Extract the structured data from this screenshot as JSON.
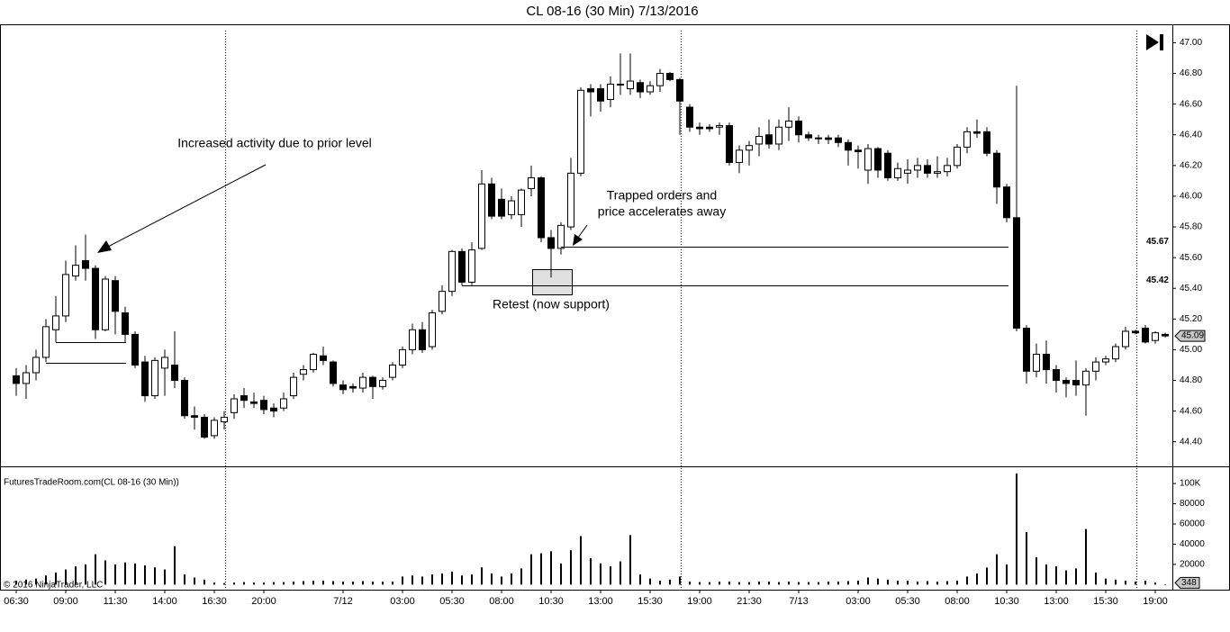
{
  "chart_data": [
    {
      "type": "candlestick",
      "title": "CL 08-16 (30 Min)  7/13/2016",
      "categories": [
        "06:30",
        null,
        null,
        null,
        null,
        "09:00",
        null,
        null,
        null,
        null,
        "11:30",
        null,
        null,
        null,
        null,
        "14:00",
        null,
        null,
        null,
        null,
        "16:30",
        null,
        null,
        null,
        null,
        "20:00",
        null,
        null,
        null,
        null,
        null,
        null,
        null,
        "7/12",
        null,
        null,
        null,
        null,
        null,
        "03:00",
        null,
        null,
        null,
        null,
        "05:30",
        null,
        null,
        null,
        null,
        "08:00",
        null,
        null,
        null,
        null,
        "10:30",
        null,
        null,
        null,
        null,
        "13:00",
        null,
        null,
        null,
        null,
        "15:30",
        null,
        null,
        null,
        null,
        "19:00",
        null,
        null,
        null,
        null,
        "21:30",
        null,
        null,
        null,
        null,
        "7/13",
        null,
        null,
        null,
        null,
        null,
        "03:00",
        null,
        null,
        null,
        null,
        "05:30",
        null,
        null,
        null,
        null,
        "08:00",
        null,
        null,
        null,
        null,
        "10:30",
        null,
        null,
        null,
        null,
        "13:00",
        null,
        null,
        null,
        null,
        "15:30",
        null,
        null,
        null,
        null,
        "19:00",
        null
      ],
      "open": [
        44.83,
        44.78,
        44.85,
        44.95,
        45.13,
        45.22,
        45.48,
        45.58,
        45.53,
        45.13,
        45.45,
        45.24,
        45.1,
        44.92,
        44.7,
        44.88,
        44.9,
        44.8,
        44.57,
        44.56,
        44.44,
        44.53,
        44.59,
        44.7,
        44.66,
        44.67,
        44.62,
        44.62,
        44.7,
        44.84,
        44.87,
        44.96,
        44.92,
        44.77,
        44.76,
        44.75,
        44.82,
        44.76,
        44.82,
        44.9,
        45.0,
        45.13,
        45.02,
        45.25,
        45.38,
        45.64,
        45.44,
        45.66,
        46.08,
        45.98,
        45.88,
        45.88,
        46.05,
        46.12,
        45.73,
        45.66,
        45.8,
        46.15,
        46.7,
        46.7,
        46.63,
        46.73,
        46.7,
        46.74,
        46.68,
        46.72,
        46.8,
        46.76,
        46.58,
        46.45,
        46.45,
        46.45,
        46.46,
        46.22,
        46.3,
        46.34,
        46.4,
        46.34,
        46.45,
        46.49,
        46.4,
        46.38,
        46.38,
        46.38,
        46.35,
        46.3,
        46.17,
        46.31,
        46.28,
        46.12,
        46.15,
        46.17,
        46.2,
        46.15,
        46.16,
        46.2,
        46.32,
        46.42,
        46.42,
        46.28,
        46.06,
        45.86,
        45.14,
        44.86,
        44.97,
        44.87,
        44.8,
        44.8,
        44.77,
        44.86,
        44.92,
        44.94,
        45.02,
        45.12,
        45.14,
        45.06,
        45.1
      ],
      "high": [
        44.88,
        44.9,
        45.0,
        45.2,
        45.35,
        45.58,
        45.68,
        45.75,
        45.55,
        45.48,
        45.48,
        45.28,
        45.12,
        44.96,
        44.95,
        45.0,
        45.12,
        44.82,
        44.63,
        44.58,
        44.56,
        44.6,
        44.71,
        44.75,
        44.72,
        44.7,
        44.65,
        44.72,
        44.85,
        44.9,
        44.98,
        45.02,
        44.93,
        44.8,
        44.78,
        44.85,
        44.83,
        44.82,
        44.92,
        45.02,
        45.17,
        45.18,
        45.26,
        45.42,
        45.65,
        45.66,
        45.7,
        46.17,
        46.12,
        46.05,
        46.0,
        46.05,
        46.2,
        46.13,
        45.78,
        45.83,
        46.25,
        46.71,
        46.73,
        46.73,
        46.78,
        46.93,
        46.93,
        46.76,
        46.75,
        46.83,
        46.81,
        46.77,
        46.6,
        46.48,
        46.47,
        46.48,
        46.48,
        46.33,
        46.36,
        46.45,
        46.5,
        46.5,
        46.58,
        46.52,
        46.42,
        46.4,
        46.4,
        46.4,
        46.37,
        46.33,
        46.34,
        46.32,
        46.3,
        46.22,
        46.24,
        46.25,
        46.24,
        46.26,
        46.25,
        46.34,
        46.45,
        46.5,
        46.45,
        46.3,
        46.08,
        46.72,
        45.16,
        45.04,
        45.06,
        44.9,
        44.82,
        44.93,
        44.88,
        44.95,
        44.96,
        45.04,
        45.15,
        45.13,
        45.16,
        45.12,
        45.11
      ],
      "low": [
        44.7,
        44.68,
        44.8,
        44.92,
        45.05,
        45.18,
        45.45,
        45.45,
        45.07,
        45.12,
        45.1,
        45.05,
        44.88,
        44.66,
        44.68,
        44.7,
        44.75,
        44.55,
        44.48,
        44.42,
        44.42,
        44.48,
        44.55,
        44.62,
        44.62,
        44.58,
        44.56,
        44.6,
        44.68,
        44.8,
        44.85,
        44.9,
        44.76,
        44.71,
        44.72,
        44.72,
        44.68,
        44.74,
        44.8,
        44.88,
        44.97,
        44.98,
        45.0,
        45.23,
        45.35,
        45.42,
        45.42,
        45.65,
        45.85,
        45.85,
        45.85,
        45.8,
        46.0,
        45.7,
        45.47,
        45.62,
        45.78,
        46.13,
        46.52,
        46.55,
        46.58,
        46.66,
        46.66,
        46.64,
        46.66,
        46.68,
        46.75,
        46.4,
        46.42,
        46.4,
        46.42,
        46.4,
        46.2,
        46.15,
        46.2,
        46.26,
        46.31,
        46.3,
        46.36,
        46.35,
        46.36,
        46.34,
        46.34,
        46.32,
        46.2,
        46.18,
        46.08,
        46.12,
        46.1,
        46.1,
        46.08,
        46.12,
        46.12,
        46.12,
        46.13,
        46.18,
        46.28,
        46.38,
        46.26,
        45.95,
        45.83,
        45.12,
        44.78,
        44.82,
        44.78,
        44.72,
        44.69,
        44.7,
        44.57,
        44.8,
        44.9,
        44.92,
        45.0,
        45.1,
        45.04,
        45.04,
        45.08
      ],
      "close": [
        44.78,
        44.85,
        44.95,
        45.15,
        45.22,
        45.49,
        45.55,
        45.53,
        45.13,
        45.46,
        45.25,
        45.1,
        44.9,
        44.7,
        44.93,
        44.95,
        44.8,
        44.57,
        44.56,
        44.43,
        44.54,
        44.56,
        44.68,
        44.67,
        44.65,
        44.61,
        44.6,
        44.68,
        44.82,
        44.87,
        44.97,
        44.93,
        44.78,
        44.74,
        44.75,
        44.82,
        44.76,
        44.8,
        44.9,
        45.0,
        45.13,
        45.0,
        45.24,
        45.38,
        45.64,
        45.44,
        45.65,
        46.08,
        45.87,
        45.87,
        45.97,
        46.04,
        46.12,
        45.73,
        45.66,
        45.81,
        46.15,
        46.69,
        46.68,
        46.62,
        46.73,
        46.73,
        46.75,
        46.68,
        46.72,
        46.8,
        46.76,
        46.62,
        46.45,
        46.44,
        46.44,
        46.46,
        46.22,
        46.3,
        46.33,
        46.39,
        46.34,
        46.45,
        46.49,
        46.4,
        46.38,
        46.38,
        46.37,
        46.35,
        46.3,
        46.29,
        46.31,
        46.17,
        46.12,
        46.18,
        46.17,
        46.2,
        46.15,
        46.16,
        46.2,
        46.32,
        46.42,
        46.41,
        46.28,
        46.06,
        45.86,
        45.14,
        44.86,
        44.97,
        44.87,
        44.8,
        44.78,
        44.77,
        44.86,
        44.92,
        44.94,
        45.02,
        45.12,
        45.11,
        45.05,
        45.11,
        45.09
      ],
      "ylim": [
        44.24,
        47.12
      ],
      "yticks": [
        {
          "value": 44.4,
          "label": "44.40"
        },
        {
          "value": 44.6,
          "label": "44.60"
        },
        {
          "value": 44.8,
          "label": "44.80"
        },
        {
          "value": 45.0,
          "label": "45.00"
        },
        {
          "value": 45.2,
          "label": "45.20"
        },
        {
          "value": 45.4,
          "label": "45.40"
        },
        {
          "value": 45.6,
          "label": "45.60"
        },
        {
          "value": 45.8,
          "label": "45.80"
        },
        {
          "value": 46.0,
          "label": "46.00"
        },
        {
          "value": 46.2,
          "label": "46.20"
        },
        {
          "value": 46.4,
          "label": "46.40"
        },
        {
          "value": 46.6,
          "label": "46.60"
        },
        {
          "value": 46.8,
          "label": "46.80"
        },
        {
          "value": 47.0,
          "label": "47.00"
        }
      ],
      "levels": [
        45.67,
        45.42
      ],
      "annotations": [
        {
          "text": "Increased activity due to prior level"
        },
        {
          "lines": [
            "Trapped orders and",
            "price accelerates away"
          ]
        },
        {
          "text": "Retest (now support)"
        }
      ],
      "up_color": "#ffffff",
      "down_color": "#000000"
    },
    {
      "type": "bar",
      "label": "FuturesTradeRoom.com(CL 08-16 (30 Min))",
      "values": [
        4000,
        5000,
        6000,
        9000,
        12000,
        15000,
        18000,
        20000,
        30000,
        24000,
        20000,
        22000,
        21000,
        19000,
        17000,
        15000,
        38000,
        10000,
        7000,
        5000,
        2000,
        1500,
        2000,
        2500,
        2000,
        2000,
        2500,
        2500,
        3000,
        3500,
        4000,
        4000,
        3500,
        3000,
        3000,
        3500,
        3000,
        3000,
        3000,
        8000,
        9000,
        8000,
        10000,
        11000,
        13000,
        9000,
        10000,
        17000,
        11000,
        8000,
        11000,
        16000,
        30000,
        31000,
        33000,
        21000,
        34000,
        48000,
        26000,
        21000,
        18000,
        23000,
        49000,
        10000,
        6000,
        4000,
        5000,
        8000,
        3000,
        2500,
        2500,
        3000,
        3000,
        2500,
        2500,
        3000,
        3000,
        2500,
        3000,
        2500,
        2500,
        2500,
        3000,
        3000,
        3500,
        4000,
        7000,
        6000,
        5000,
        4000,
        4000,
        3000,
        3500,
        3000,
        3500,
        4000,
        8000,
        11000,
        17000,
        30000,
        20000,
        110000,
        52000,
        27000,
        20000,
        18000,
        14000,
        16000,
        55000,
        12000,
        6000,
        5000,
        4000,
        3000,
        4000,
        2000,
        348
      ],
      "ylim": [
        -5000,
        117000
      ],
      "yticks": [
        20000,
        40000,
        60000,
        80000,
        {
          "value": 100000,
          "label": "100K"
        }
      ],
      "color": "#000000"
    }
  ],
  "copyright": "© 2016 NinjaTrader, LLC"
}
